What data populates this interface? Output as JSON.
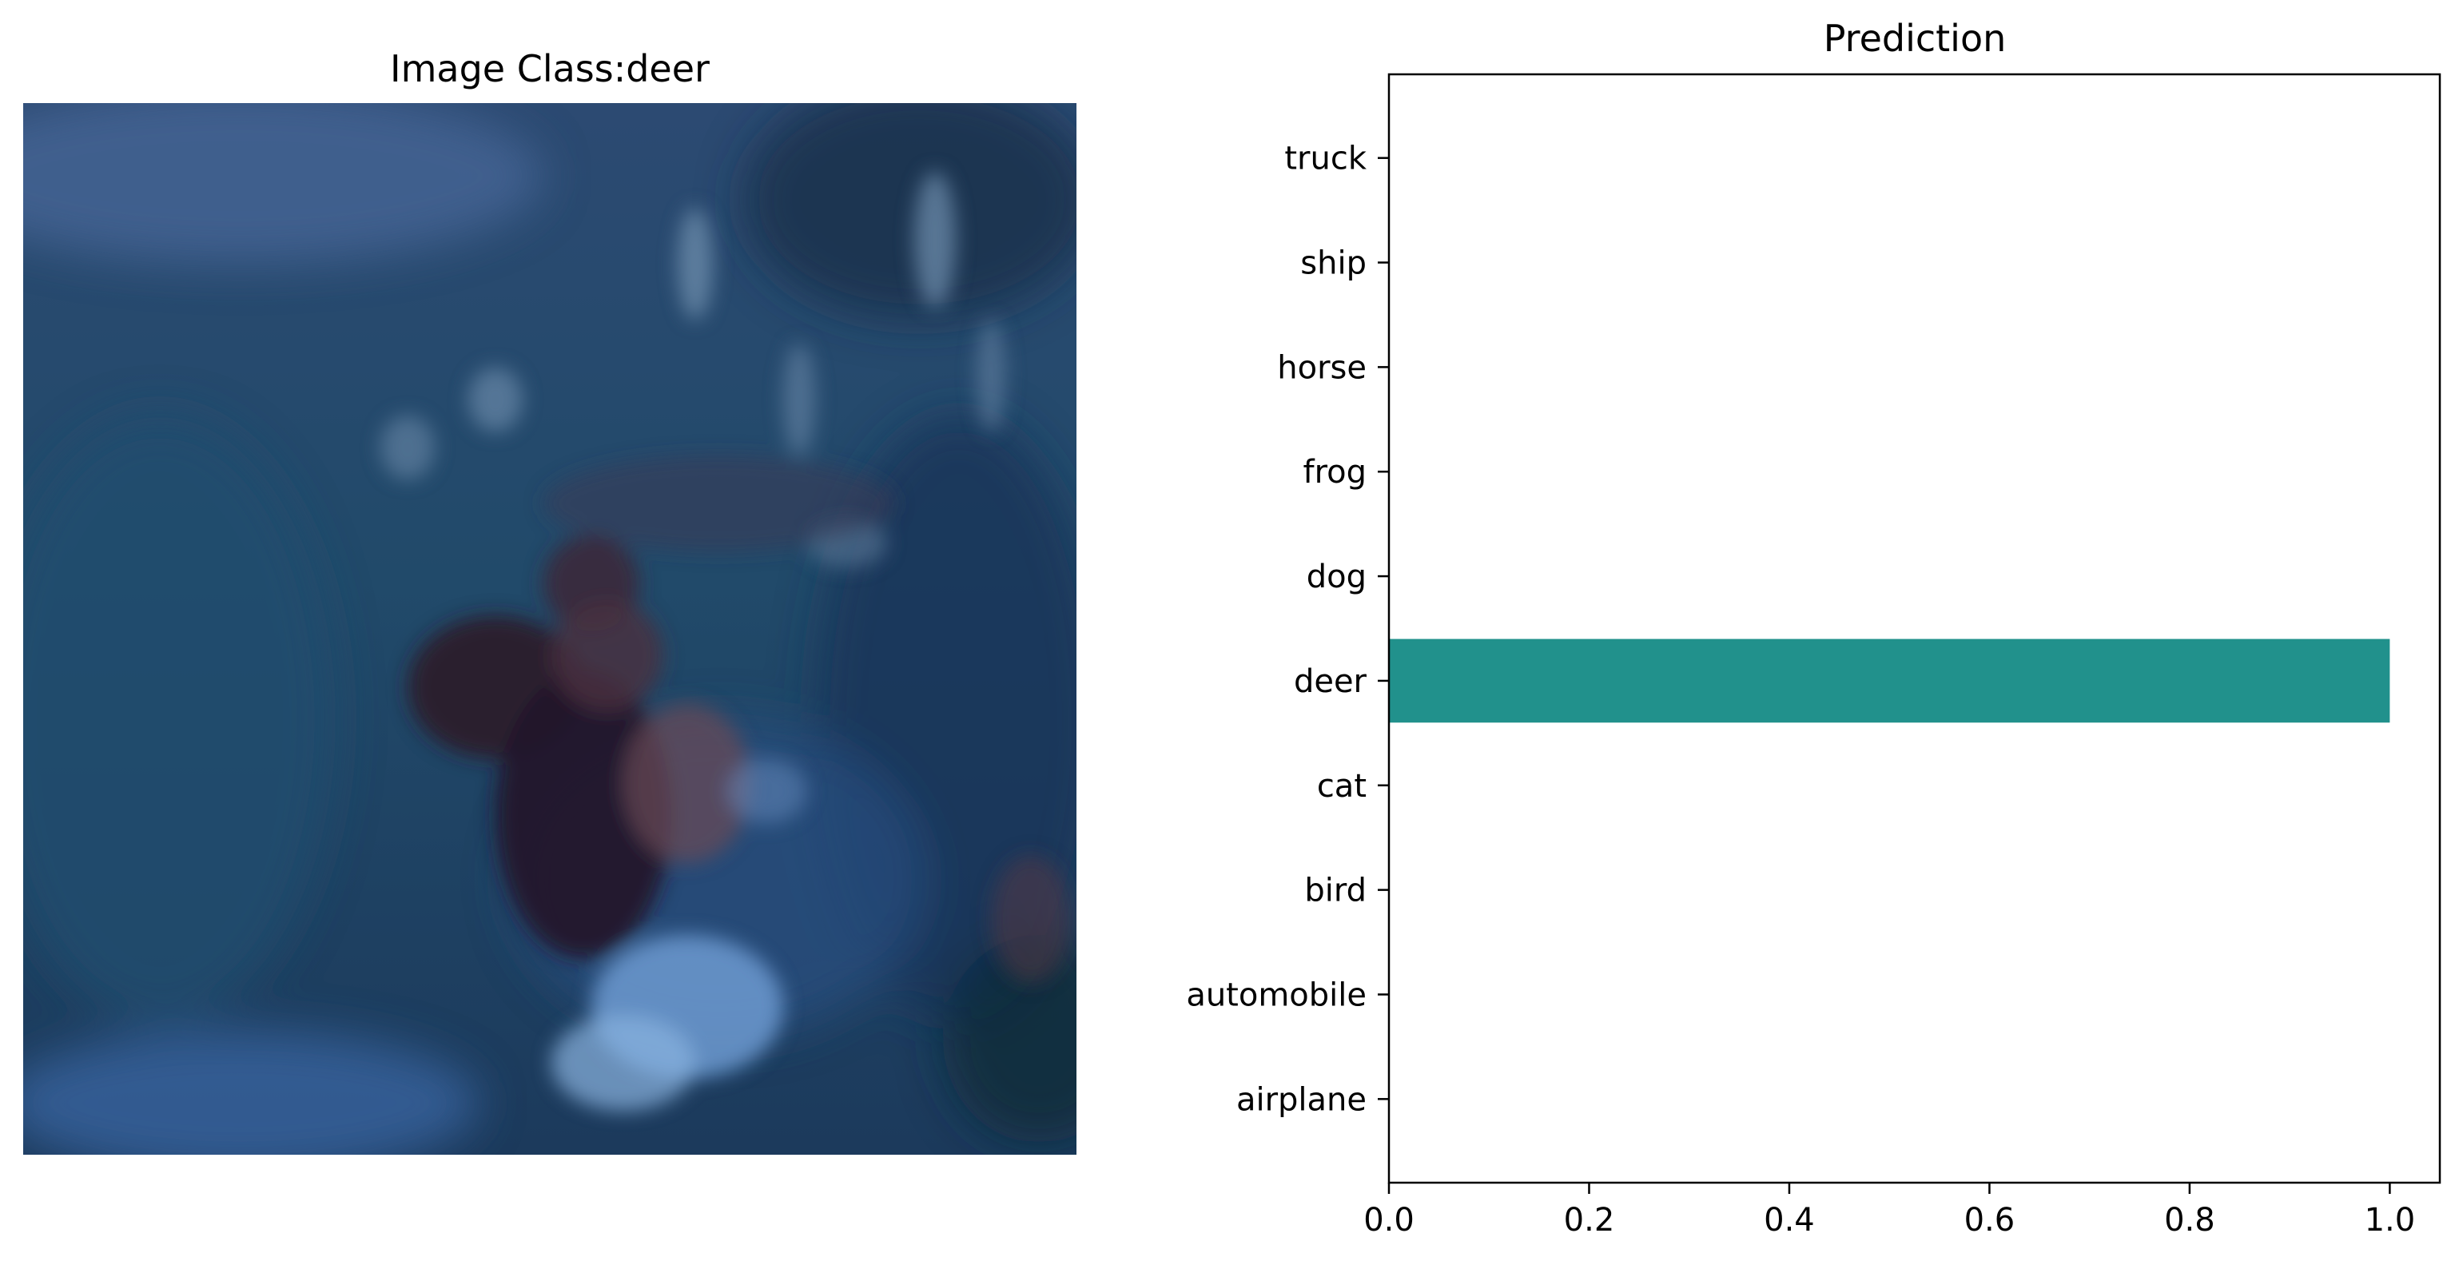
{
  "image_panel": {
    "title": "Image Class:deer",
    "image_subject": "blurred deer photograph"
  },
  "chart_data": {
    "type": "bar",
    "orientation": "horizontal",
    "title": "Prediction",
    "xlabel": "",
    "ylabel": "",
    "categories": [
      "airplane",
      "automobile",
      "bird",
      "cat",
      "deer",
      "dog",
      "frog",
      "horse",
      "ship",
      "truck"
    ],
    "values": [
      0,
      0,
      0,
      0,
      1.0,
      0,
      0,
      0,
      0,
      0
    ],
    "xlim": [
      0,
      1.05
    ],
    "xticks": [
      "0.0",
      "0.2",
      "0.4",
      "0.6",
      "0.8",
      "1.0"
    ],
    "bar_color": "#21918c",
    "grid": false,
    "legend": "none"
  }
}
